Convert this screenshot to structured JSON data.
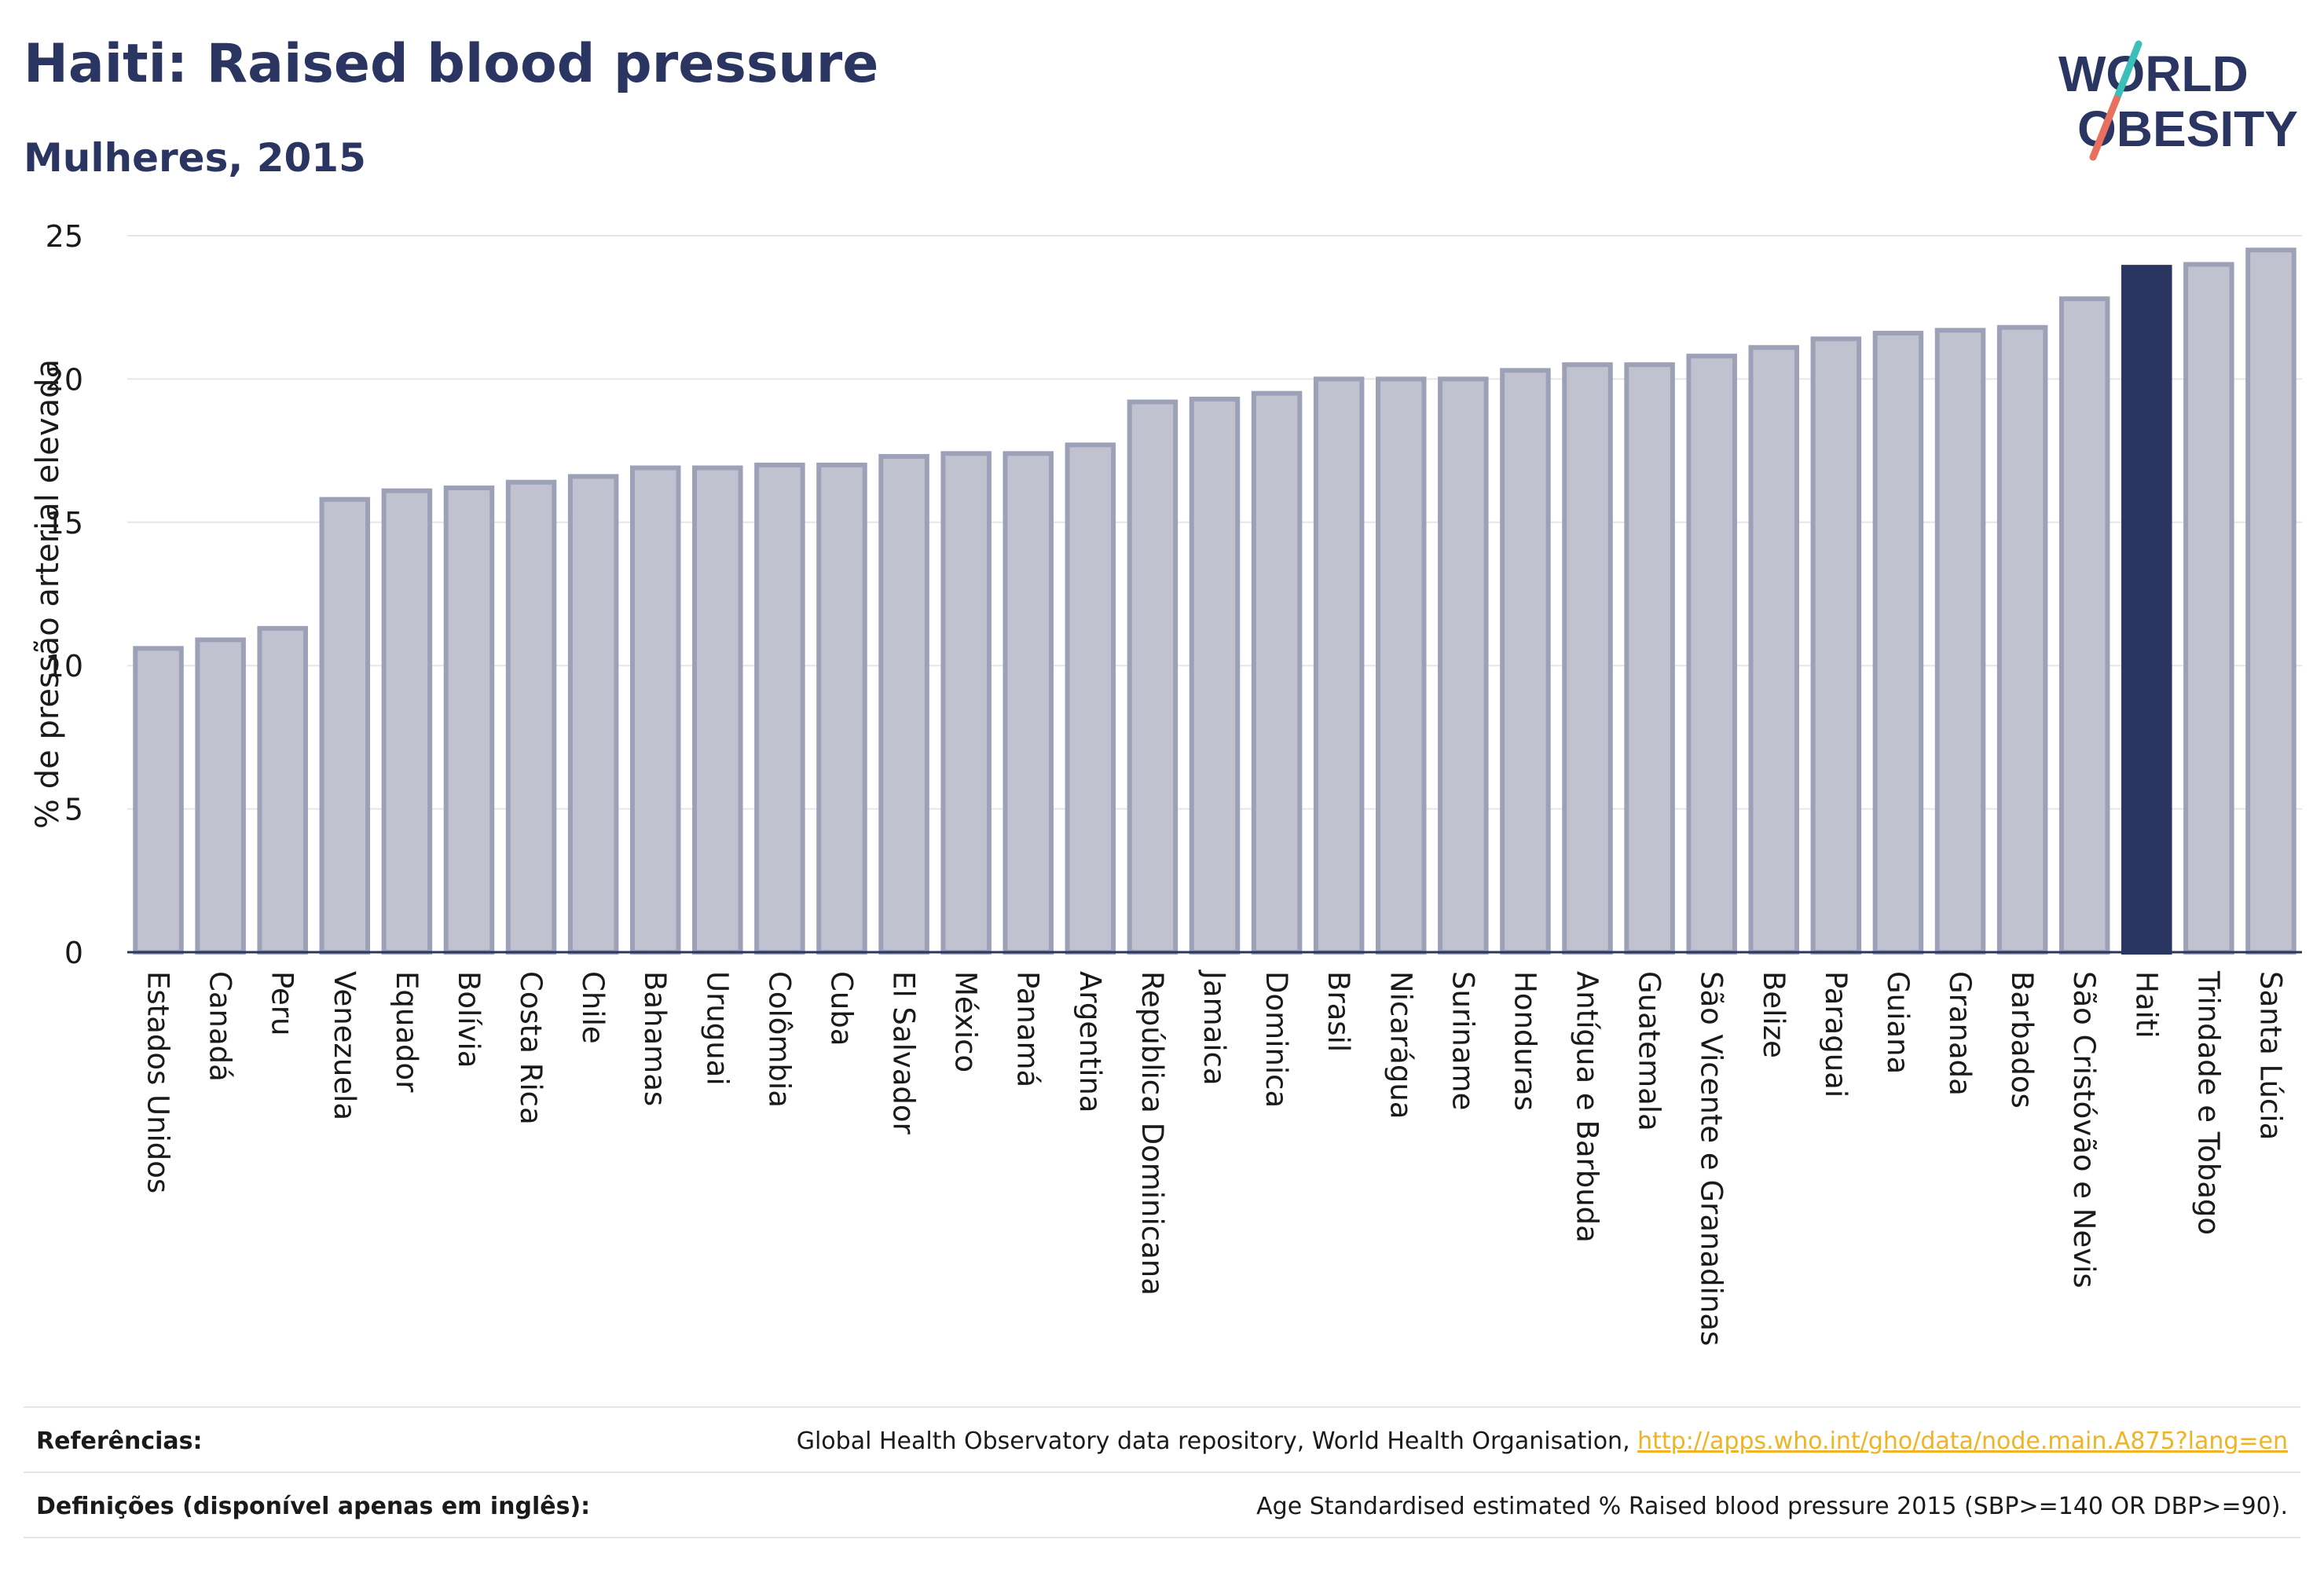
{
  "title": "Haiti: Raised blood pressure",
  "subtitle": "Mulheres, 2015",
  "logo": {
    "line1": "WORLD",
    "line2": "OBESITY"
  },
  "colors": {
    "highlight": "#2b3561",
    "bar_fill": "#c0c3cf",
    "bar_stroke": "#9da1b8",
    "grid": "#e6e6e6",
    "axis": "#2b3561",
    "logo_slash_teal": "#3bbfb9",
    "logo_slash_coral": "#e8705f",
    "link": "#f0b323"
  },
  "chart_data": {
    "type": "bar",
    "ylabel": "% de pressão arterial elevada",
    "xlabel": "",
    "ylim": [
      0,
      25
    ],
    "yticks": [
      0,
      5,
      10,
      15,
      20,
      25
    ],
    "grid": true,
    "highlight_category": "Haiti",
    "categories": [
      "Estados Unidos",
      "Canadá",
      "Peru",
      "Venezuela",
      "Equador",
      "Bolívia",
      "Costa Rica",
      "Chile",
      "Bahamas",
      "Uruguai",
      "Colômbia",
      "Cuba",
      "El Salvador",
      "México",
      "Panamá",
      "Argentina",
      "República Dominicana",
      "Jamaica",
      "Dominica",
      "Brasil",
      "Nicarágua",
      "Suriname",
      "Honduras",
      "Antígua e Barbuda",
      "Guatemala",
      "São Vicente e Granadinas",
      "Belize",
      "Paraguai",
      "Guiana",
      "Granada",
      "Barbados",
      "São Cristóvão e Nevis",
      "Haiti",
      "Trindade e Tobago",
      "Santa Lúcia"
    ],
    "values": [
      10.6,
      10.9,
      11.3,
      15.8,
      16.1,
      16.2,
      16.4,
      16.6,
      16.9,
      16.9,
      17.0,
      17.0,
      17.3,
      17.4,
      17.4,
      17.7,
      19.2,
      19.3,
      19.5,
      20.0,
      20.0,
      20.0,
      20.3,
      20.5,
      20.5,
      20.8,
      21.1,
      21.4,
      21.6,
      21.7,
      21.8,
      22.8,
      23.9,
      24.0,
      24.5
    ]
  },
  "footer": {
    "references_label": "Referências:",
    "references_text": "Global Health Observatory data repository, World Health Organisation, ",
    "references_link": "http://apps.who.int/gho/data/node.main.A875?lang=en",
    "definitions_label": "Definições (disponível apenas em inglês):",
    "definitions_text": "Age Standardised estimated % Raised blood pressure 2015 (SBP>=140 OR DBP>=90)."
  }
}
